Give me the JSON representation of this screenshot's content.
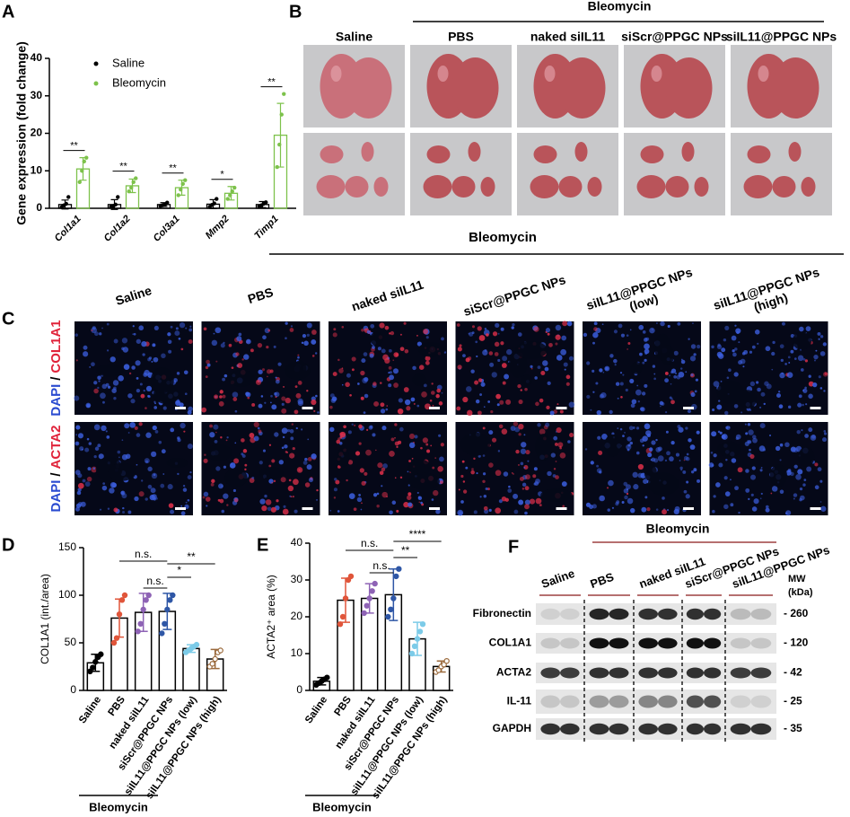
{
  "panel_labels": [
    "A",
    "B",
    "C",
    "D",
    "E",
    "F"
  ],
  "chart_data": [
    {
      "type": "bar",
      "ylabel": "Gene expression (fold change)",
      "categories": [
        "Col1a1",
        "Col1a2",
        "Col3a1",
        "Mmp2",
        "Timp1"
      ],
      "series": [
        {
          "name": "Saline",
          "color": "#000000",
          "values": [
            1.0,
            1.0,
            1.0,
            1.1,
            1.0
          ],
          "errors": [
            1.2,
            1.3,
            0.5,
            1.2,
            0.8
          ],
          "points": [
            [
              0.3,
              0.8,
              1.2,
              3.0
            ],
            [
              0.4,
              0.6,
              1.0,
              3.0
            ],
            [
              0.6,
              0.8,
              1.0,
              1.5
            ],
            [
              0.4,
              0.9,
              1.3,
              2.5
            ],
            [
              0.5,
              0.8,
              1.2,
              1.6
            ]
          ]
        },
        {
          "name": "Bleomycin",
          "color": "#7dc24b",
          "values": [
            10.5,
            6.0,
            5.5,
            4.0,
            19.5
          ],
          "errors": [
            3.0,
            1.8,
            2.0,
            1.8,
            8.5
          ],
          "points": [
            [
              7.0,
              10.0,
              12.5,
              13.5
            ],
            [
              4.5,
              5.5,
              7.0,
              8.0
            ],
            [
              3.5,
              5.0,
              6.5,
              7.5
            ],
            [
              2.5,
              3.5,
              4.5,
              5.5
            ],
            [
              11.0,
              17.0,
              25.0,
              30.5
            ]
          ]
        }
      ],
      "annotations": [
        "**",
        "**",
        "**",
        "*",
        "**"
      ],
      "ylim": [
        0,
        40
      ],
      "yticks": [
        0,
        10,
        20,
        30,
        40
      ]
    },
    {
      "type": "dotbar",
      "ylabel": "COL1A1 (int./area)",
      "categories": [
        "Saline",
        "PBS",
        "naked siIL11",
        "siScr@PPGC NPs",
        "siIL11@PPGC NPs (low)",
        "siIL11@PPGC NPs (high)"
      ],
      "values": [
        29,
        76,
        82,
        83,
        44,
        33
      ],
      "errors": [
        9,
        20,
        20,
        19,
        4,
        10
      ],
      "points": [
        [
          20,
          24,
          30,
          35,
          38
        ],
        [
          50,
          55,
          80,
          95,
          100
        ],
        [
          62,
          70,
          85,
          95,
          100
        ],
        [
          60,
          70,
          85,
          95,
          100
        ],
        [
          40,
          42,
          44,
          46,
          48
        ],
        [
          25,
          28,
          33,
          40,
          42
        ]
      ],
      "colors": [
        "#000000",
        "#e0553a",
        "#8e63b5",
        "#2f57a6",
        "#7ccbe8",
        "#9b6a3c"
      ],
      "annotations": [
        "n.s.",
        "n.s.",
        "*",
        "**"
      ],
      "group_label": "Bleomycin",
      "ylim": [
        0,
        150
      ],
      "yticks": [
        0,
        50,
        100,
        150
      ]
    },
    {
      "type": "dotbar",
      "ylabel": "ACTA2⁺ area (%)",
      "categories": [
        "Saline",
        "PBS",
        "naked siIL11",
        "siScr@PPGC NPs",
        "siIL11@PPGC NPs (low)",
        "siIL11@PPGC NPs (high)"
      ],
      "values": [
        2.5,
        24.5,
        25,
        26,
        14,
        6.5
      ],
      "errors": [
        1,
        6,
        4,
        7,
        4.5,
        1.5
      ],
      "points": [
        [
          1.5,
          2,
          2.5,
          3,
          3.5
        ],
        [
          18,
          20,
          25,
          30,
          31
        ],
        [
          21,
          23,
          25,
          27,
          29
        ],
        [
          20,
          22,
          25,
          31,
          33
        ],
        [
          10,
          12,
          14,
          16,
          18
        ],
        [
          5,
          5.5,
          6.5,
          7,
          8
        ]
      ],
      "colors": [
        "#000000",
        "#e0553a",
        "#8e63b5",
        "#2f57a6",
        "#7ccbe8",
        "#9b6a3c"
      ],
      "annotations": [
        "n.s.",
        "n.s.",
        "**",
        "****"
      ],
      "group_label": "Bleomycin",
      "ylim": [
        0,
        40
      ],
      "yticks": [
        0,
        10,
        20,
        30,
        40
      ]
    }
  ],
  "lung_photos": {
    "group_label": "Bleomycin",
    "columns": [
      "Saline",
      "PBS",
      "naked siIL11",
      "siScr@PPGC NPs",
      "siIL11@PPGC NPs"
    ]
  },
  "histology": {
    "group_label": "Bleomycin",
    "columns": [
      [
        "Saline"
      ],
      [
        "PBS"
      ],
      [
        "naked siIL11"
      ],
      [
        "siScr@PPGC NPs"
      ],
      [
        "siIL11@PPGC NPs",
        "(low)"
      ],
      [
        "siIL11@PPGC NPs",
        "(high)"
      ]
    ],
    "rows": [
      {
        "stain": "DAPI",
        "separator": "/",
        "marker": "COL1A1"
      },
      {
        "stain": "DAPI",
        "separator": "/",
        "marker": "ACTA2"
      }
    ]
  },
  "western_blot": {
    "group_label": "Bleomycin",
    "lanes": [
      "Saline",
      "PBS",
      "naked siIL11",
      "siScr@PPGC NPs",
      "siIL11@PPGC NPs"
    ],
    "mw_header": [
      "MW",
      "(kDa)"
    ],
    "proteins": [
      {
        "name": "Fibronectin",
        "mw": "- 260"
      },
      {
        "name": "COL1A1",
        "mw": "- 120"
      },
      {
        "name": "ACTA2",
        "mw": "- 42"
      },
      {
        "name": "IL-11",
        "mw": "- 25"
      },
      {
        "name": "GAPDH",
        "mw": "- 35"
      }
    ]
  }
}
